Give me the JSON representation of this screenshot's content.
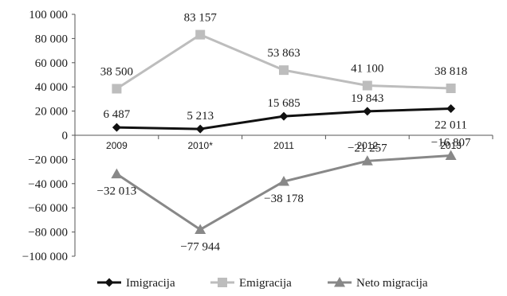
{
  "chart_data": {
    "type": "line",
    "title": "",
    "xlabel": "",
    "ylabel": "",
    "categories": [
      "2009",
      "2010*",
      "2011",
      "2012",
      "2013"
    ],
    "ylim": [
      -100000,
      100000
    ],
    "yticks": [
      100000,
      80000,
      60000,
      40000,
      20000,
      0,
      -20000,
      -40000,
      -60000,
      -80000,
      -100000
    ],
    "ytick_labels": [
      "100 000",
      "80 000",
      "60 000",
      "40 000",
      "20 000",
      "0",
      "−20 000",
      "−40 000",
      "−60 000",
      "−80 000",
      "−100 000"
    ],
    "grid": false,
    "legend_position": "bottom",
    "series": [
      {
        "name": "Imigracija",
        "values": [
          6487,
          5213,
          15685,
          19843,
          22011
        ],
        "labels": [
          "6 487",
          "5 213",
          "15 685",
          "19 843",
          "22 011"
        ],
        "color": "#111111",
        "marker": "diamond"
      },
      {
        "name": "Emigracija",
        "values": [
          38500,
          83157,
          53863,
          41100,
          38818
        ],
        "labels": [
          "38 500",
          "83 157",
          "53 863",
          "41 100",
          "38 818"
        ],
        "color": "#bdbdbd",
        "marker": "square"
      },
      {
        "name": "Neto migracija",
        "values": [
          -32013,
          -77944,
          -38178,
          -21257,
          -16807
        ],
        "labels": [
          "−32 013",
          "−77 944",
          "−38 178",
          "−21 257",
          "−16 807"
        ],
        "color": "#888888",
        "marker": "triangle"
      }
    ]
  }
}
